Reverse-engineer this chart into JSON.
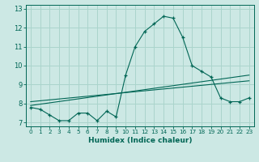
{
  "xlabel": "Humidex (Indice chaleur)",
  "bg_color": "#cce8e4",
  "grid_color": "#aad4cc",
  "line_color": "#006655",
  "xlim": [
    -0.5,
    23.5
  ],
  "ylim": [
    6.8,
    13.2
  ],
  "yticks": [
    7,
    8,
    9,
    10,
    11,
    12,
    13
  ],
  "xticks": [
    0,
    1,
    2,
    3,
    4,
    5,
    6,
    7,
    8,
    9,
    10,
    11,
    12,
    13,
    14,
    15,
    16,
    17,
    18,
    19,
    20,
    21,
    22,
    23
  ],
  "line1_x": [
    0,
    1,
    2,
    3,
    4,
    5,
    6,
    7,
    8,
    9,
    10,
    11,
    12,
    13,
    14,
    15,
    16,
    17,
    18,
    19,
    20,
    21,
    22,
    23
  ],
  "line1_y": [
    7.8,
    7.7,
    7.4,
    7.1,
    7.1,
    7.5,
    7.5,
    7.1,
    7.6,
    7.3,
    9.5,
    11.0,
    11.8,
    12.2,
    12.6,
    12.5,
    11.5,
    10.0,
    9.7,
    9.4,
    8.3,
    8.1,
    8.1,
    8.3
  ],
  "line2_x": [
    0,
    23
  ],
  "line2_y": [
    7.9,
    9.5
  ],
  "line3_x": [
    0,
    23
  ],
  "line3_y": [
    8.1,
    9.2
  ]
}
